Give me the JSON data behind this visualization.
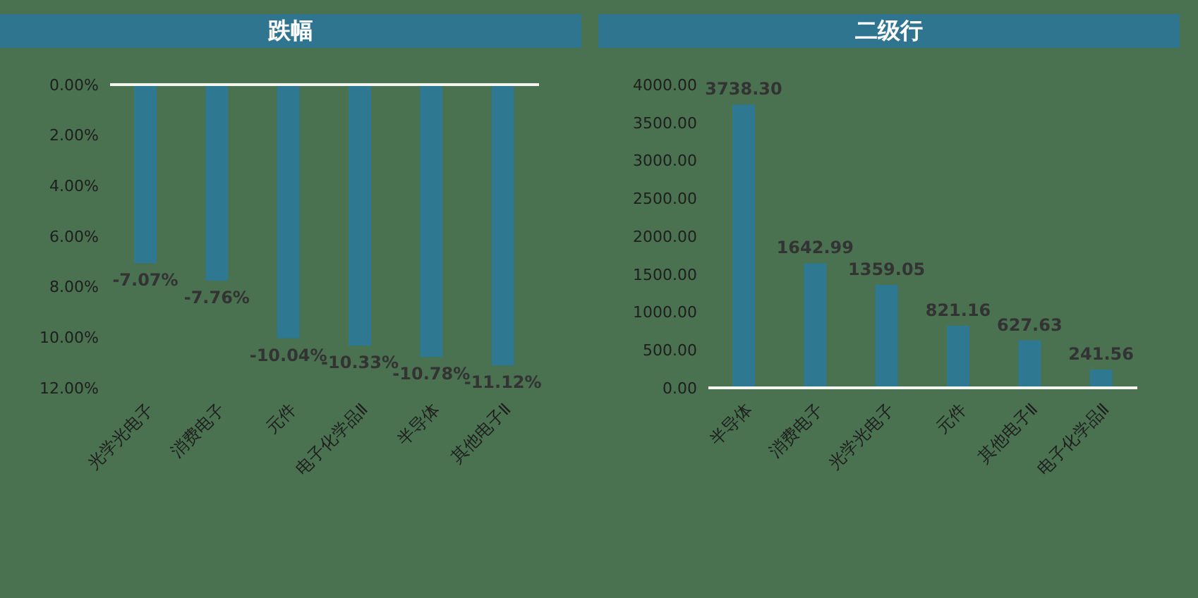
{
  "chart_data": [
    {
      "type": "bar",
      "title": "跌幅",
      "categories": [
        "光学光电子",
        "消费电子",
        "元件",
        "电子化学品Ⅱ",
        "半导体",
        "其他电子Ⅱ"
      ],
      "values": [
        -7.07,
        -7.76,
        -10.04,
        -10.33,
        -10.78,
        -11.12
      ],
      "color": "#2e7891",
      "ylim": [
        -12,
        0
      ],
      "yticks": [
        {
          "value": 0,
          "label": "0.00%"
        },
        {
          "value": -2,
          "label": "2.00%"
        },
        {
          "value": -4,
          "label": "4.00%"
        },
        {
          "value": -6,
          "label": "6.00%"
        },
        {
          "value": -8,
          "label": "8.00%"
        },
        {
          "value": -10,
          "label": "10.00%"
        },
        {
          "value": -12,
          "label": "12.00%"
        }
      ],
      "value_labels": [
        "-7.07%",
        "-7.76%",
        "-10.04%",
        "-10.33%",
        "-10.78%",
        "-11.12%"
      ]
    },
    {
      "type": "bar",
      "title": "二级行",
      "categories": [
        "半导体",
        "消费电子",
        "光学光电子",
        "元件",
        "其他电子Ⅱ",
        "电子化学品Ⅱ"
      ],
      "values": [
        3738.3,
        1642.99,
        1359.05,
        821.16,
        627.63,
        241.56
      ],
      "color": "#2e7891",
      "ylim": [
        0,
        4000
      ],
      "yticks": [
        {
          "value": 0,
          "label": "0.00"
        },
        {
          "value": 500,
          "label": "500.00"
        },
        {
          "value": 1000,
          "label": "1000.00"
        },
        {
          "value": 1500,
          "label": "1500.00"
        },
        {
          "value": 2000,
          "label": "2000.00"
        },
        {
          "value": 2500,
          "label": "2500.00"
        },
        {
          "value": 3000,
          "label": "3000.00"
        },
        {
          "value": 3500,
          "label": "3500.00"
        },
        {
          "value": 4000,
          "label": "4000.00"
        }
      ],
      "value_labels": [
        "3738.30",
        "1642.99",
        "1359.05",
        "821.16",
        "627.63",
        "241.56"
      ]
    }
  ]
}
